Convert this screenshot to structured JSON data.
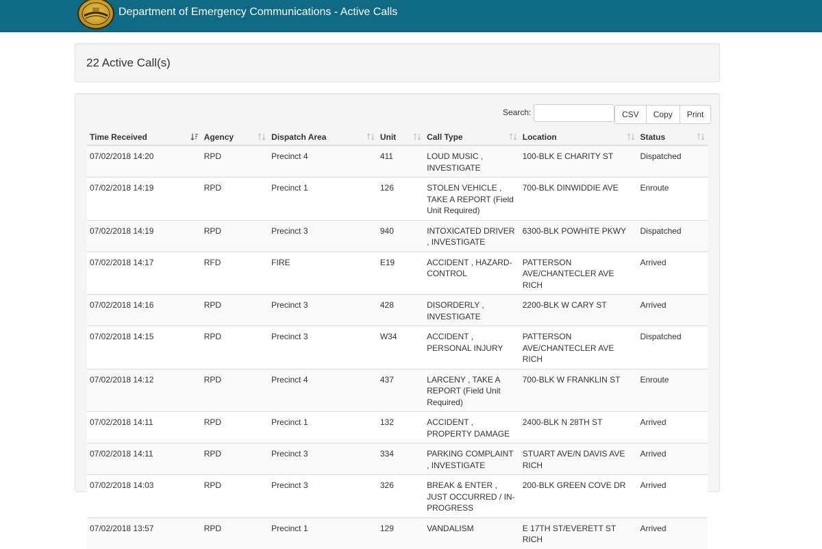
{
  "header": {
    "title": "Department of Emergency Communications - Active Calls",
    "logo_text": "RICHMOND VIRGINIA"
  },
  "summary": {
    "count_text": "22 Active Call(s)"
  },
  "toolbar": {
    "search_label": "Search:",
    "search_value": "",
    "csv_label": "CSV",
    "copy_label": "Copy",
    "print_label": "Print"
  },
  "table": {
    "columns": [
      "Time Received",
      "Agency",
      "Dispatch Area",
      "Unit",
      "Call Type",
      "Location",
      "Status"
    ],
    "rows": [
      {
        "time": "07/02/2018 14:20",
        "agency": "RPD",
        "area": "Precinct 4",
        "unit": "411",
        "type": "LOUD MUSIC , INVESTIGATE",
        "location": "100-BLK E CHARITY ST",
        "status": "Dispatched"
      },
      {
        "time": "07/02/2018 14:19",
        "agency": "RPD",
        "area": "Precinct 1",
        "unit": "126",
        "type": "STOLEN VEHICLE , TAKE A REPORT (Field Unit Required)",
        "location": "700-BLK DINWIDDIE AVE",
        "status": "Enroute"
      },
      {
        "time": "07/02/2018 14:19",
        "agency": "RPD",
        "area": "Precinct 3",
        "unit": "940",
        "type": "INTOXICATED DRIVER , INVESTIGATE",
        "location": "6300-BLK POWHITE PKWY",
        "status": "Dispatched"
      },
      {
        "time": "07/02/2018 14:17",
        "agency": "RFD",
        "area": "FIRE",
        "unit": "E19",
        "type": "ACCIDENT , HAZARD-CONTROL",
        "location": "PATTERSON AVE/CHANTECLER AVE RICH",
        "status": "Arrived"
      },
      {
        "time": "07/02/2018 14:16",
        "agency": "RPD",
        "area": "Precinct 3",
        "unit": "428",
        "type": "DISORDERLY , INVESTIGATE",
        "location": "2200-BLK W CARY ST",
        "status": "Arrived"
      },
      {
        "time": "07/02/2018 14:15",
        "agency": "RPD",
        "area": "Precinct 3",
        "unit": "W34",
        "type": "ACCIDENT , PERSONAL INJURY",
        "location": "PATTERSON AVE/CHANTECLER AVE RICH",
        "status": "Dispatched"
      },
      {
        "time": "07/02/2018 14:12",
        "agency": "RPD",
        "area": "Precinct 4",
        "unit": "437",
        "type": "LARCENY , TAKE A REPORT (Field Unit Required)",
        "location": "700-BLK W FRANKLIN ST",
        "status": "Enroute"
      },
      {
        "time": "07/02/2018 14:11",
        "agency": "RPD",
        "area": "Precinct 1",
        "unit": "132",
        "type": "ACCIDENT , PROPERTY DAMAGE",
        "location": "2400-BLK N 28TH ST",
        "status": "Arrived"
      },
      {
        "time": "07/02/2018 14:11",
        "agency": "RPD",
        "area": "Precinct 3",
        "unit": "334",
        "type": "PARKING COMPLAINT , INVESTIGATE",
        "location": "STUART AVE/N DAVIS AVE RICH",
        "status": "Arrived"
      },
      {
        "time": "07/02/2018 14:03",
        "agency": "RPD",
        "area": "Precinct 3",
        "unit": "326",
        "type": "BREAK & ENTER , JUST OCCURRED / IN-PROGRESS",
        "location": "200-BLK GREEN COVE DR",
        "status": "Arrived"
      },
      {
        "time": "07/02/2018 13:57",
        "agency": "RPD",
        "area": "Precinct 1",
        "unit": "129",
        "type": "VANDALISM",
        "location": "E 17TH ST/EVERETT ST RICH",
        "status": "Arrived"
      }
    ]
  }
}
